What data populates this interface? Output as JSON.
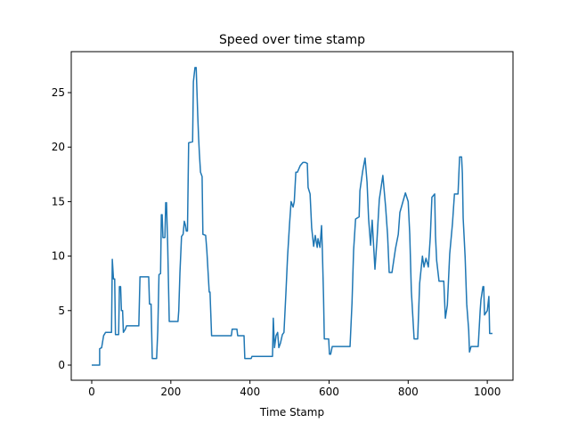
{
  "chart_data": {
    "type": "line",
    "title": "Speed over time stamp",
    "xlabel": "Time Stamp",
    "x": [
      0,
      20,
      20,
      25,
      30,
      35,
      50,
      52,
      55,
      58,
      60,
      68,
      70,
      73,
      75,
      78,
      80,
      85,
      88,
      119,
      122,
      144,
      146,
      150,
      153,
      164,
      167,
      170,
      174,
      176,
      178,
      180,
      185,
      187,
      189,
      192,
      196,
      218,
      220,
      223,
      227,
      231,
      234,
      237,
      239,
      242,
      245,
      255,
      257,
      261,
      264,
      268,
      270,
      272,
      275,
      279,
      281,
      288,
      291,
      297,
      299,
      303,
      308,
      313,
      315,
      353,
      355,
      367,
      369,
      385,
      387,
      403,
      405,
      457,
      459,
      462,
      466,
      470,
      473,
      477,
      482,
      486,
      491,
      495,
      500,
      504,
      509,
      512,
      516,
      520,
      527,
      534,
      540,
      545,
      547,
      552,
      556,
      561,
      565,
      570,
      572,
      577,
      581,
      583,
      586,
      588,
      599,
      601,
      604,
      608,
      653,
      658,
      662,
      667,
      676,
      678,
      685,
      691,
      696,
      700,
      705,
      709,
      716,
      721,
      727,
      736,
      743,
      748,
      752,
      759,
      768,
      775,
      779,
      793,
      800,
      804,
      808,
      815,
      824,
      829,
      836,
      840,
      845,
      851,
      856,
      860,
      867,
      869,
      872,
      878,
      890,
      894,
      899,
      905,
      912,
      917,
      926,
      930,
      935,
      937,
      939,
      944,
      948,
      953,
      955,
      959,
      977,
      982,
      984,
      989,
      991,
      993,
      1000,
      1004,
      1006,
      1013
    ],
    "y": [
      0,
      0,
      1.5,
      1.6,
      2.7,
      3,
      3,
      9.7,
      7.9,
      7.9,
      2.8,
      2.8,
      7.2,
      7.2,
      5,
      5,
      3,
      3.3,
      3.6,
      3.6,
      8.1,
      8.1,
      5.6,
      5.6,
      0.6,
      0.6,
      3.2,
      8.3,
      8.4,
      13.8,
      13.8,
      11.7,
      11.7,
      14.9,
      14.9,
      11,
      4,
      4,
      5,
      8.5,
      11.8,
      12,
      13.2,
      12.8,
      12.3,
      12.3,
      20.4,
      20.5,
      26,
      27.3,
      27.3,
      22.9,
      21,
      19.5,
      17.7,
      17.3,
      12,
      11.9,
      10.5,
      6.7,
      6.7,
      2.7,
      2.7,
      2.7,
      2.7,
      2.7,
      3.3,
      3.3,
      2.7,
      2.7,
      0.6,
      0.6,
      0.8,
      0.8,
      4.3,
      1.6,
      2.7,
      3,
      1.6,
      2,
      2.8,
      3,
      6.7,
      9.9,
      12.9,
      15,
      14.5,
      15,
      17.7,
      17.7,
      18.3,
      18.6,
      18.6,
      18.5,
      16.3,
      15.7,
      12.6,
      10.9,
      11.9,
      10.8,
      11.6,
      10.8,
      12.8,
      10.6,
      6.3,
      2.4,
      2.4,
      1,
      1,
      1.7,
      1.7,
      5.7,
      10.5,
      13.4,
      13.6,
      16,
      17.8,
      19,
      16.8,
      13.4,
      11,
      13.3,
      8.8,
      11.4,
      15.2,
      17.4,
      14.5,
      11.9,
      8.5,
      8.5,
      10.7,
      12,
      14,
      15.8,
      15,
      12,
      6.8,
      2.4,
      2.4,
      7.5,
      10,
      9,
      9.8,
      9,
      11.8,
      15.4,
      15.7,
      11.9,
      9.6,
      7.7,
      7.7,
      4.3,
      5.5,
      10.2,
      13,
      15.7,
      15.7,
      19.1,
      19.1,
      17.6,
      13.5,
      9.9,
      5.6,
      3.2,
      1.2,
      1.7,
      1.7,
      5,
      6,
      7.2,
      7.2,
      4.6,
      5,
      6.3,
      2.9,
      2.9
    ],
    "color": "#1f77b4",
    "xlim": [
      -51.8,
      1065
    ],
    "ylim": [
      -1.39,
      28.76
    ],
    "xticks": [
      0,
      200,
      400,
      600,
      800,
      1000
    ],
    "yticks": [
      0,
      5,
      10,
      15,
      20,
      25
    ]
  }
}
